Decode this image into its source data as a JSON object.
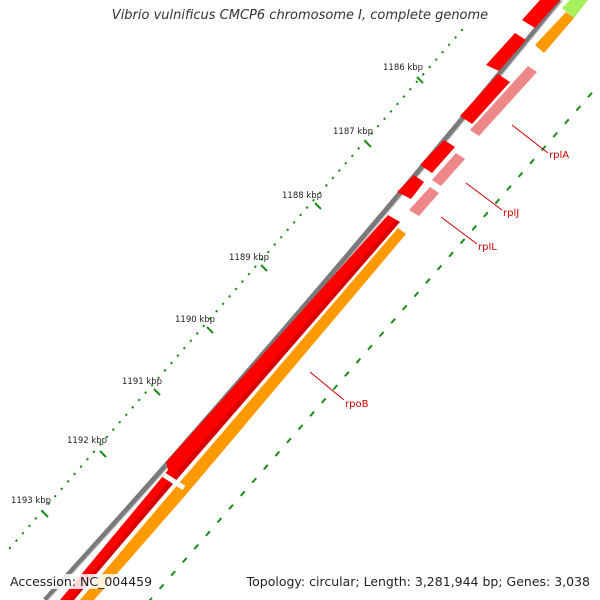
{
  "title": "Vibrio vulnificus CMCP6 chromosome I, complete genome",
  "footer": {
    "accession": "Accession: NC_004459",
    "summary": "Topology: circular; Length: 3,281,944 bp; Genes: 3,038"
  },
  "kbp_labels": [
    "1186 kbp",
    "1187 kbp",
    "1188 kbp",
    "1189 kbp",
    "1190 kbp",
    "1191 kbp",
    "1192 kbp",
    "1193 kbp"
  ],
  "gene_labels": [
    "rplA",
    "rplJ",
    "rplL",
    "rpoB"
  ],
  "colors": {
    "backbone": "#7a7a7a",
    "cds": "#ff0000",
    "rna_light": "#ee8888",
    "cds_orange": "#ff9900",
    "green_tick": "#1a8c1a",
    "lime": "#a6f05c",
    "label": "#cc0000"
  }
}
